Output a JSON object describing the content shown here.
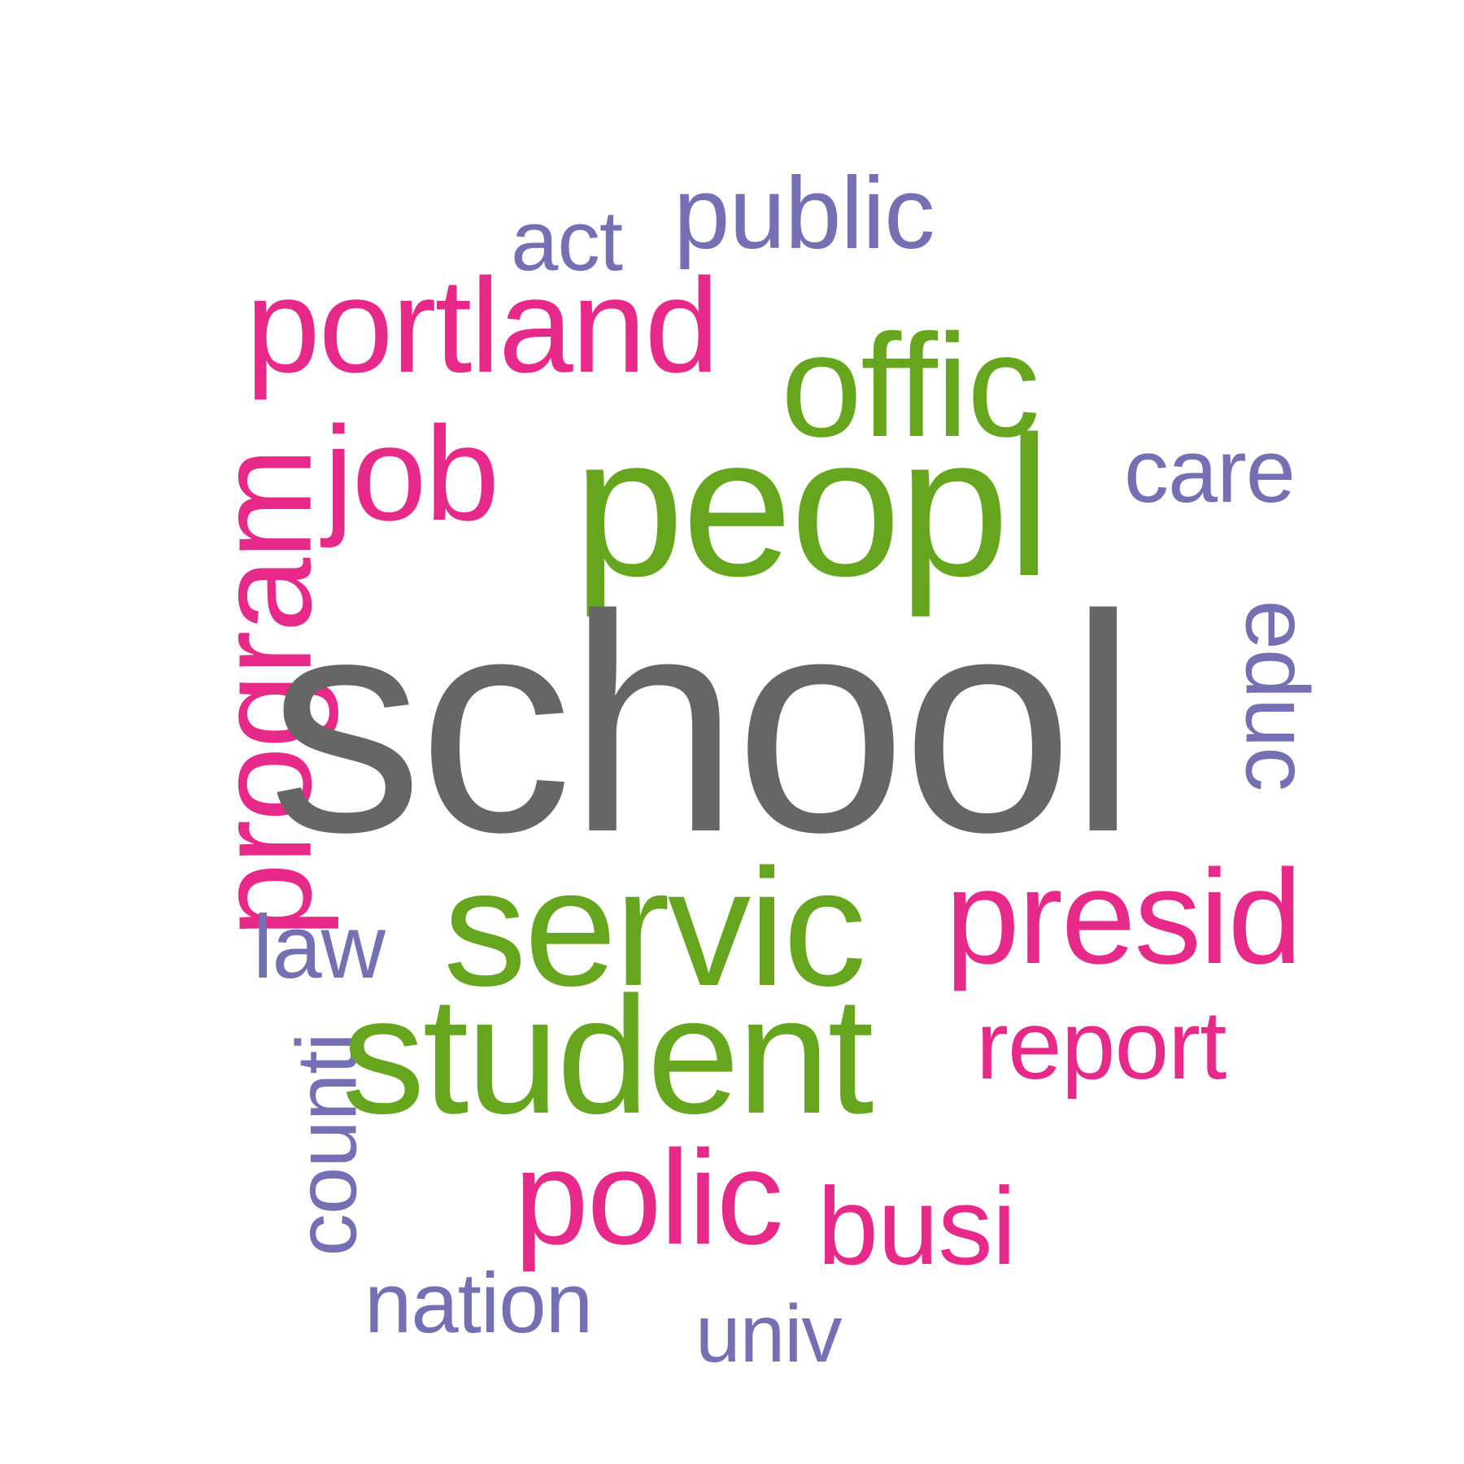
{
  "palette": {
    "largest": "#666666",
    "green": "#66a61e",
    "pink": "#e7298a",
    "purple": "#7570b3"
  },
  "words": {
    "school": "school",
    "peopl": "peopl",
    "servic": "servic",
    "student": "student",
    "offic": "offic",
    "presid": "presid",
    "portland": "portland",
    "job": "job",
    "polic": "polic",
    "program": "program",
    "report": "report",
    "busi": "busi",
    "public": "public",
    "care": "care",
    "educ": "educ",
    "law": "law",
    "act": "act",
    "counti": "counti",
    "nation": "nation",
    "univ": "univ"
  },
  "word_weights": {
    "school": 1.0,
    "peopl": 0.65,
    "servic": 0.55,
    "student": 0.55,
    "offic": 0.47,
    "presid": 0.43,
    "portland": 0.43,
    "job": 0.43,
    "polic": 0.43,
    "program": 0.43,
    "busi": 0.35,
    "report": 0.31,
    "public": 0.32,
    "care": 0.29,
    "educ": 0.29,
    "law": 0.29,
    "act": 0.27,
    "counti": 0.27,
    "nation": 0.27,
    "univ": 0.26
  }
}
